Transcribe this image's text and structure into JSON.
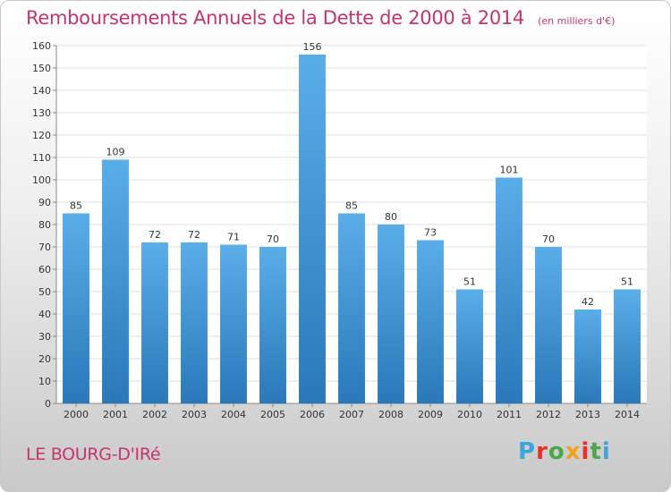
{
  "header": {
    "title": "Remboursements Annuels de la Dette de 2000 à 2014",
    "unit": "(en milliers d'€)"
  },
  "location": "LE BOURG-D'IRé",
  "logo": {
    "letters": [
      "P",
      "r",
      "o",
      "x",
      "i",
      "t",
      "i"
    ],
    "colors": [
      "#3aa6dc",
      "#e8312b",
      "#4aa84a",
      "#f2a21a",
      "#e8312b",
      "#4aa84a",
      "#3aa6dc"
    ]
  },
  "colors": {
    "bar_top": "#5aaee8",
    "bar_bottom": "#2a78b8",
    "grid": "#dcdcdc",
    "title": "#c8336e"
  },
  "chart_data": {
    "type": "bar",
    "categories": [
      "2000",
      "2001",
      "2002",
      "2003",
      "2004",
      "2005",
      "2006",
      "2007",
      "2008",
      "2009",
      "2010",
      "2011",
      "2012",
      "2013",
      "2014"
    ],
    "values": [
      85,
      109,
      72,
      72,
      71,
      70,
      156,
      85,
      80,
      73,
      51,
      101,
      70,
      42,
      51
    ],
    "ylim": [
      0,
      160
    ],
    "yticks": [
      0,
      10,
      20,
      30,
      40,
      50,
      60,
      70,
      80,
      90,
      100,
      110,
      120,
      130,
      140,
      150,
      160
    ],
    "grid": true,
    "legend": "none"
  }
}
